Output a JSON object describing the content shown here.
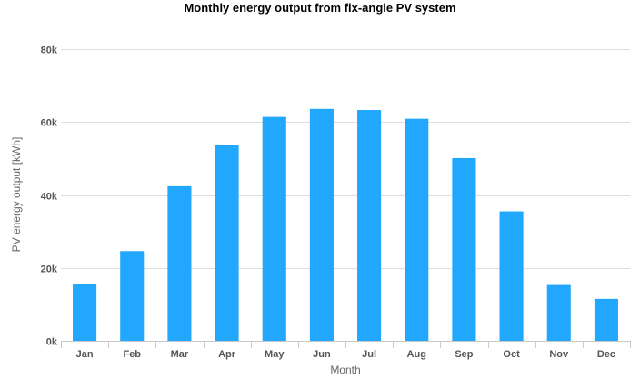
{
  "chart_data": {
    "type": "bar",
    "title": "Monthly energy output from fix-angle PV system",
    "xlabel": "Month",
    "ylabel": "PV energy output [kWh]",
    "categories": [
      "Jan",
      "Feb",
      "Mar",
      "Apr",
      "May",
      "Jun",
      "Jul",
      "Aug",
      "Sep",
      "Oct",
      "Nov",
      "Dec"
    ],
    "values": [
      15600,
      24600,
      42400,
      53700,
      61400,
      63600,
      63300,
      60900,
      50100,
      35500,
      15300,
      11500
    ],
    "ylim": [
      0,
      80000
    ],
    "yticks": [
      0,
      20000,
      40000,
      60000,
      80000
    ],
    "ytick_labels": [
      "0k",
      "20k",
      "40k",
      "60k",
      "80k"
    ],
    "grid": true,
    "legend": "none",
    "bar_color": "#22a7fe"
  }
}
